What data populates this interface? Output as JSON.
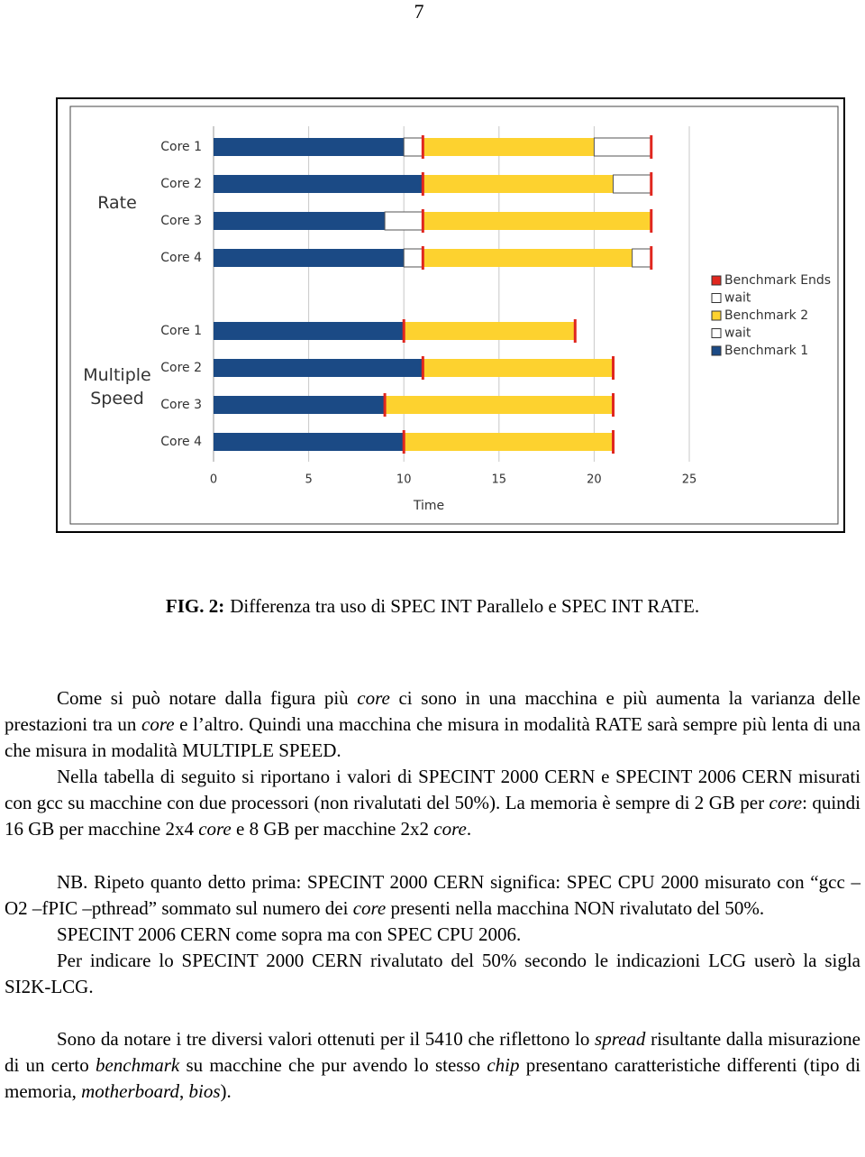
{
  "page_number": "7",
  "chart_data": {
    "type": "bar",
    "orientation": "horizontal",
    "stacked": true,
    "xlabel": "Time",
    "xlim": [
      0,
      25
    ],
    "xticks": [
      0,
      5,
      10,
      15,
      20,
      25
    ],
    "grid": true,
    "groups": [
      {
        "name": "Rate",
        "categories": [
          "Core 1",
          "Core 2",
          "Core 3",
          "Core 4"
        ]
      },
      {
        "name": "Multiple Speed",
        "categories": [
          "Core 1",
          "Core 2",
          "Core 3",
          "Core 4"
        ]
      }
    ],
    "series": [
      {
        "name": "Benchmark 1",
        "color": "#1b4a85",
        "values": [
          10,
          11,
          9,
          10,
          10,
          11,
          9,
          10
        ]
      },
      {
        "name": "wait",
        "color": "#ffffff",
        "values": [
          1,
          0,
          2,
          1,
          0,
          0,
          0,
          0
        ]
      },
      {
        "name": "Benchmark 2",
        "color": "#fdd22f",
        "values": [
          9,
          10,
          12,
          11,
          9,
          10,
          12,
          11
        ]
      },
      {
        "name": "wait",
        "color": "#ffffff",
        "values": [
          3,
          2,
          0,
          1,
          0,
          0,
          0,
          0
        ]
      }
    ],
    "markers": {
      "name": "Benchmark Ends",
      "color": "#e0261e",
      "values": [
        [
          11,
          23
        ],
        [
          11,
          23
        ],
        [
          11,
          23
        ],
        [
          11,
          23
        ],
        [
          10,
          19
        ],
        [
          11,
          21
        ],
        [
          9,
          21
        ],
        [
          10,
          21
        ]
      ]
    }
  },
  "caption": {
    "label": "FIG. 2:",
    "text": "Differenza tra uso di SPEC INT Parallelo e SPEC INT RATE."
  },
  "paragraphs": [
    [
      "Come si può notare dalla figura più ",
      "core",
      " ci sono in una macchina e più aumenta la varianza delle prestazioni tra un ",
      "core",
      " e l’altro. Quindi una macchina che misura in modalità RATE sarà sempre più lenta di una che misura in modalità MULTIPLE SPEED."
    ],
    [
      "Nella tabella di seguito si riportano i valori di SPECINT 2000 CERN e SPECINT 2006 CERN misurati con gcc su macchine con due processori (non rivalutati del 50%). La memoria è sempre di 2 GB per ",
      "core",
      ": quindi 16 GB per macchine 2x4 ",
      "core",
      " e 8 GB per macchine 2x2 ",
      "core",
      "."
    ],
    [
      "NB. Ripeto quanto detto prima: SPECINT 2000 CERN significa: SPEC CPU 2000 misurato con “gcc –O2 –fPIC –pthread” sommato sul numero dei ",
      "core",
      " presenti nella macchina NON rivalutato del 50%."
    ],
    [
      "SPECINT 2006 CERN come sopra ma con SPEC CPU 2006."
    ],
    [
      "Per indicare lo SPECINT 2000 CERN rivalutato del 50% secondo le indicazioni LCG userò la sigla SI2K-LCG."
    ],
    [
      "Sono da notare i tre diversi valori ottenuti per il 5410 che riflettono lo ",
      "spread",
      " risultante dalla misurazione di un certo ",
      "benchmark",
      " su macchine che pur avendo lo stesso ",
      "chip",
      " presentano caratteristiche differenti (tipo di memoria, ",
      "motherboard",
      ", ",
      "bios",
      ")."
    ]
  ]
}
